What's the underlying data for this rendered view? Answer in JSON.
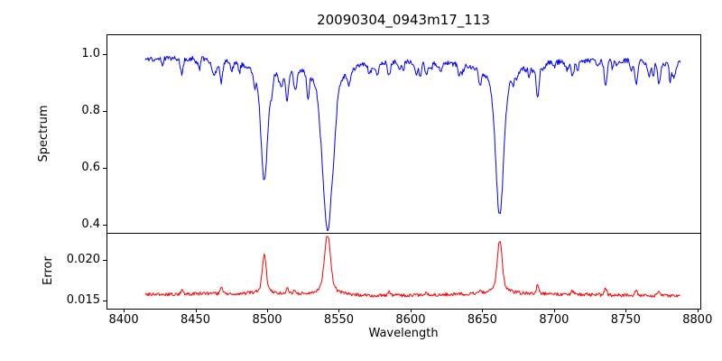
{
  "chart_data": {
    "type": "line",
    "title": "20090304_0943m17_113",
    "xlabel": "Wavelength",
    "xlim": [
      8388,
      8802
    ],
    "x_data_range": [
      8415,
      8788
    ],
    "x_ticks": [
      8400,
      8450,
      8500,
      8550,
      8600,
      8650,
      8700,
      8750,
      8800
    ],
    "noise_seed": 20090304,
    "panels": [
      {
        "name": "spectrum",
        "ylabel": "Spectrum",
        "color": "#0000ff",
        "ylim": [
          0.37,
          1.07
        ],
        "yticks": [
          0.4,
          0.6,
          0.8,
          1.0
        ],
        "ytick_labels": [
          "0.4",
          "0.6",
          "0.8",
          "1.0"
        ],
        "continuum": 0.978,
        "noise_amplitude": 0.018,
        "absorption_lines": [
          {
            "center": 8498.0,
            "depth": 0.415,
            "sigma": 2.2
          },
          {
            "center": 8542.1,
            "depth": 0.595,
            "sigma": 3.2
          },
          {
            "center": 8662.1,
            "depth": 0.535,
            "sigma": 2.6
          }
        ],
        "minor_absorption_lines": [
          {
            "center": 8440.5,
            "depth": 0.05
          },
          {
            "center": 8468.0,
            "depth": 0.08
          },
          {
            "center": 8514.1,
            "depth": 0.1
          },
          {
            "center": 8519.0,
            "depth": 0.055
          },
          {
            "center": 8585.0,
            "depth": 0.05
          },
          {
            "center": 8611.0,
            "depth": 0.04
          },
          {
            "center": 8648.5,
            "depth": 0.05
          },
          {
            "center": 8688.6,
            "depth": 0.12
          },
          {
            "center": 8713.0,
            "depth": 0.05
          },
          {
            "center": 8736.0,
            "depth": 0.09
          },
          {
            "center": 8757.0,
            "depth": 0.065
          },
          {
            "center": 8773.0,
            "depth": 0.045
          }
        ],
        "random_dip_count": 55
      },
      {
        "name": "error",
        "ylabel": "Error",
        "color": "#ff0000",
        "ylim": [
          0.014,
          0.0233
        ],
        "yticks": [
          0.015,
          0.02
        ],
        "ytick_labels": [
          "0.015",
          "0.020"
        ],
        "baseline": 0.0157,
        "noise_amplitude": 0.0004,
        "error_peaks": [
          {
            "center": 8498.0,
            "height": 0.0048,
            "sigma": 1.3
          },
          {
            "center": 8542.1,
            "height": 0.0074,
            "sigma": 2.0
          },
          {
            "center": 8662.1,
            "height": 0.0066,
            "sigma": 1.6
          }
        ]
      }
    ]
  }
}
